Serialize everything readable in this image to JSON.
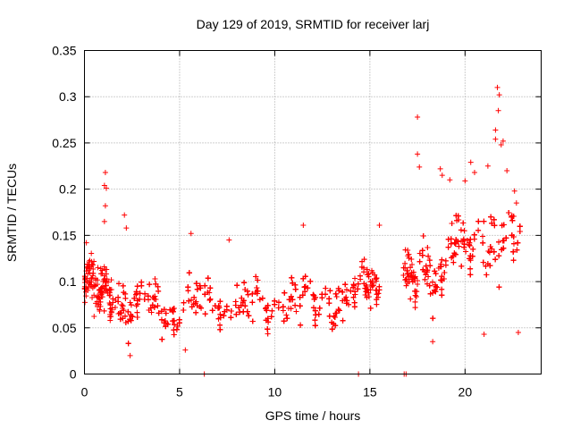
{
  "chart_data": {
    "type": "scatter",
    "title": "Day 129 of 2019, SRMTID for receiver larj",
    "xlabel": "GPS time / hours",
    "ylabel": "SRMTID / TECUs",
    "xlim": [
      0,
      24
    ],
    "ylim": [
      0,
      0.35
    ],
    "xticks": [
      "0",
      "5",
      "10",
      "15",
      "20"
    ],
    "yticks": [
      "0",
      "0.05",
      "0.1",
      "0.15",
      "0.2",
      "0.25",
      "0.3",
      "0.35"
    ],
    "grid": true,
    "marker": "+",
    "color": "#ff0000",
    "segments": [
      {
        "x_start": 0.0,
        "x_end": 0.5,
        "center": 0.095,
        "spread": 0.035
      },
      {
        "x_start": 0.5,
        "x_end": 1.5,
        "center": 0.08,
        "spread": 0.035
      },
      {
        "x_start": 1.5,
        "x_end": 3.0,
        "center": 0.075,
        "spread": 0.035
      },
      {
        "x_start": 3.0,
        "x_end": 5.0,
        "center": 0.065,
        "spread": 0.03
      },
      {
        "x_start": 5.0,
        "x_end": 7.5,
        "center": 0.072,
        "spread": 0.032
      },
      {
        "x_start": 7.5,
        "x_end": 10.0,
        "center": 0.07,
        "spread": 0.032
      },
      {
        "x_start": 10.0,
        "x_end": 12.5,
        "center": 0.075,
        "spread": 0.032
      },
      {
        "x_start": 12.5,
        "x_end": 14.5,
        "center": 0.078,
        "spread": 0.032
      },
      {
        "x_start": 14.5,
        "x_end": 15.5,
        "center": 0.095,
        "spread": 0.03
      },
      {
        "x_start": 16.7,
        "x_end": 17.5,
        "center": 0.09,
        "spread": 0.035
      },
      {
        "x_start": 17.5,
        "x_end": 19.0,
        "center": 0.11,
        "spread": 0.04
      },
      {
        "x_start": 19.0,
        "x_end": 20.5,
        "center": 0.13,
        "spread": 0.04
      },
      {
        "x_start": 20.5,
        "x_end": 22.9,
        "center": 0.14,
        "spread": 0.05
      }
    ],
    "outliers": [
      {
        "x": 1.1,
        "y": 0.218
      },
      {
        "x": 1.05,
        "y": 0.204
      },
      {
        "x": 1.15,
        "y": 0.201
      },
      {
        "x": 1.1,
        "y": 0.182
      },
      {
        "x": 1.05,
        "y": 0.165
      },
      {
        "x": 2.1,
        "y": 0.172
      },
      {
        "x": 2.2,
        "y": 0.158
      },
      {
        "x": 0.1,
        "y": 0.142
      },
      {
        "x": 5.6,
        "y": 0.152
      },
      {
        "x": 7.6,
        "y": 0.145
      },
      {
        "x": 11.5,
        "y": 0.161
      },
      {
        "x": 15.5,
        "y": 0.161
      },
      {
        "x": 17.5,
        "y": 0.278
      },
      {
        "x": 17.5,
        "y": 0.238
      },
      {
        "x": 17.6,
        "y": 0.224
      },
      {
        "x": 18.7,
        "y": 0.222
      },
      {
        "x": 18.8,
        "y": 0.215
      },
      {
        "x": 19.2,
        "y": 0.21
      },
      {
        "x": 20.0,
        "y": 0.209
      },
      {
        "x": 20.3,
        "y": 0.229
      },
      {
        "x": 20.5,
        "y": 0.218
      },
      {
        "x": 21.2,
        "y": 0.225
      },
      {
        "x": 21.6,
        "y": 0.264
      },
      {
        "x": 21.7,
        "y": 0.31
      },
      {
        "x": 21.8,
        "y": 0.302
      },
      {
        "x": 21.75,
        "y": 0.285
      },
      {
        "x": 21.6,
        "y": 0.254
      },
      {
        "x": 21.9,
        "y": 0.248
      },
      {
        "x": 22.0,
        "y": 0.252
      },
      {
        "x": 22.2,
        "y": 0.22
      },
      {
        "x": 22.6,
        "y": 0.198
      },
      {
        "x": 22.7,
        "y": 0.185
      },
      {
        "x": 6.3,
        "y": 0.0
      },
      {
        "x": 14.4,
        "y": 0.0
      },
      {
        "x": 16.8,
        "y": 0.0
      },
      {
        "x": 16.9,
        "y": 0.0
      },
      {
        "x": 2.4,
        "y": 0.02
      },
      {
        "x": 5.3,
        "y": 0.026
      },
      {
        "x": 18.3,
        "y": 0.035
      },
      {
        "x": 21.0,
        "y": 0.043
      },
      {
        "x": 22.8,
        "y": 0.045
      }
    ]
  }
}
